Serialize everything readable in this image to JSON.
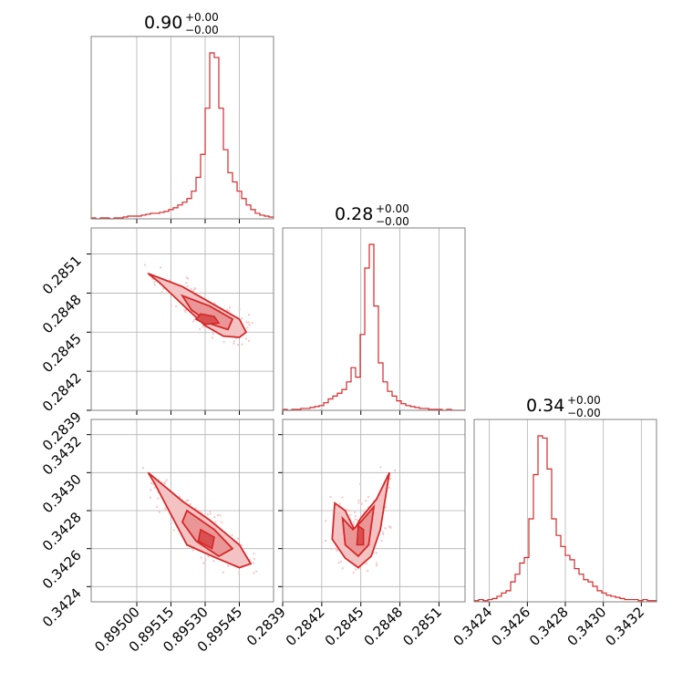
{
  "colors": {
    "main": "#d62728",
    "fill_outer": "#f3c3c3",
    "fill_mid": "#ea9696",
    "fill_inner": "#d95050",
    "scatter": "#f5c6c6",
    "grid": "#b0b0b0",
    "frame": "#808080"
  },
  "titles": [
    {
      "value": "0.90",
      "upper": "+0.00",
      "lower": "−0.00"
    },
    {
      "value": "0.28",
      "upper": "+0.00",
      "lower": "−0.00"
    },
    {
      "value": "0.34",
      "upper": "+0.00",
      "lower": "−0.00"
    }
  ],
  "axes": {
    "p0": {
      "range": [
        0.8948,
        0.8956
      ],
      "ticks": [
        0.895,
        0.89515,
        0.8953,
        0.89545
      ],
      "tick_labels": [
        "0.89500",
        "0.89515",
        "0.89530",
        "0.89545"
      ]
    },
    "p1": {
      "range": [
        0.2839,
        0.2853
      ],
      "ticks": [
        0.2839,
        0.2842,
        0.2845,
        0.2848,
        0.2851
      ],
      "tick_labels": [
        "0.2839",
        "0.2842",
        "0.2845",
        "0.2848",
        "0.2851"
      ]
    },
    "p2": {
      "range": [
        0.34232,
        0.34328
      ],
      "ticks": [
        0.3424,
        0.3426,
        0.3428,
        0.343,
        0.3432
      ],
      "tick_labels": [
        "0.3424",
        "0.3426",
        "0.3428",
        "0.3430",
        "0.3432"
      ]
    }
  },
  "chart_data": {
    "type": "corner",
    "params": [
      "p0",
      "p1",
      "p2"
    ],
    "grid": true,
    "histograms": [
      {
        "param": "p0",
        "range": [
          0.8948,
          0.8956
        ],
        "counts": [
          1,
          0,
          1,
          1,
          0,
          1,
          1,
          2,
          3,
          3,
          3,
          4,
          5,
          6,
          6,
          7,
          8,
          10,
          12,
          15,
          18,
          22,
          30,
          45,
          70,
          120,
          180,
          175,
          120,
          75,
          50,
          40,
          30,
          22,
          15,
          10,
          6,
          4,
          3,
          2
        ]
      },
      {
        "param": "p1",
        "range": [
          0.2839,
          0.2853
        ],
        "counts": [
          1,
          0,
          1,
          1,
          2,
          2,
          3,
          4,
          5,
          8,
          12,
          15,
          18,
          22,
          30,
          45,
          35,
          80,
          150,
          175,
          110,
          50,
          30,
          20,
          15,
          10,
          7,
          5,
          4,
          3,
          2,
          2,
          1,
          1,
          1,
          0,
          1,
          0,
          0,
          0
        ]
      },
      {
        "param": "p2",
        "range": [
          0.34232,
          0.34328
        ],
        "counts": [
          1,
          2,
          1,
          2,
          3,
          5,
          8,
          10,
          18,
          25,
          35,
          40,
          75,
          115,
          150,
          148,
          120,
          75,
          60,
          50,
          42,
          38,
          30,
          25,
          20,
          18,
          14,
          10,
          8,
          6,
          5,
          4,
          3,
          2,
          2,
          2,
          1,
          2,
          1,
          1
        ]
      }
    ],
    "pairs": [
      {
        "x": "p0",
        "y": "p1",
        "contours": {
          "outer": [
            [
              0.89505,
              0.28495
            ],
            [
              0.8952,
              0.28485
            ],
            [
              0.89535,
              0.2847
            ],
            [
              0.89545,
              0.2846
            ],
            [
              0.89548,
              0.2845
            ],
            [
              0.89545,
              0.28446
            ],
            [
              0.89538,
              0.28447
            ],
            [
              0.8953,
              0.28455
            ],
            [
              0.89522,
              0.28468
            ],
            [
              0.8951,
              0.28488
            ]
          ],
          "mid": [
            [
              0.8952,
              0.28478
            ],
            [
              0.89532,
              0.2847
            ],
            [
              0.89542,
              0.2846
            ],
            [
              0.8954,
              0.28452
            ],
            [
              0.89533,
              0.28456
            ],
            [
              0.89524,
              0.28467
            ]
          ],
          "inner": [
            [
              0.89528,
              0.28464
            ],
            [
              0.89534,
              0.28462
            ],
            [
              0.89536,
              0.28457
            ],
            [
              0.8953,
              0.28456
            ],
            [
              0.89526,
              0.2846
            ]
          ]
        }
      },
      {
        "x": "p0",
        "y": "p2",
        "contours": {
          "outer": [
            [
              0.89505,
              0.343
            ],
            [
              0.8952,
              0.34285
            ],
            [
              0.89532,
              0.34275
            ],
            [
              0.89545,
              0.34262
            ],
            [
              0.8955,
              0.34252
            ],
            [
              0.89545,
              0.3425
            ],
            [
              0.89535,
              0.34255
            ],
            [
              0.89522,
              0.34262
            ],
            [
              0.89515,
              0.34278
            ],
            [
              0.89508,
              0.34294
            ]
          ],
          "mid": [
            [
              0.89522,
              0.3428
            ],
            [
              0.89534,
              0.3427
            ],
            [
              0.89542,
              0.3426
            ],
            [
              0.89536,
              0.34256
            ],
            [
              0.89526,
              0.34264
            ],
            [
              0.8952,
              0.34274
            ]
          ],
          "inner": [
            [
              0.89528,
              0.3427
            ],
            [
              0.89534,
              0.34266
            ],
            [
              0.89533,
              0.3426
            ],
            [
              0.89527,
              0.34264
            ]
          ]
        }
      },
      {
        "x": "p1",
        "y": "p2",
        "contours": {
          "outer": [
            [
              0.2843,
              0.34284
            ],
            [
              0.28438,
              0.3428
            ],
            [
              0.28445,
              0.3427
            ],
            [
              0.2845,
              0.34276
            ],
            [
              0.28462,
              0.34286
            ],
            [
              0.28472,
              0.343
            ],
            [
              0.28465,
              0.3427
            ],
            [
              0.28458,
              0.34256
            ],
            [
              0.28448,
              0.3425
            ],
            [
              0.28438,
              0.34255
            ],
            [
              0.28428,
              0.34265
            ]
          ],
          "mid": [
            [
              0.28436,
              0.34276
            ],
            [
              0.28444,
              0.3427
            ],
            [
              0.2845,
              0.34274
            ],
            [
              0.2846,
              0.34282
            ],
            [
              0.28456,
              0.34262
            ],
            [
              0.28448,
              0.34256
            ],
            [
              0.28438,
              0.34262
            ]
          ],
          "inner": [
            [
              0.28448,
              0.34272
            ],
            [
              0.28452,
              0.3427
            ],
            [
              0.28452,
              0.34262
            ],
            [
              0.28447,
              0.34262
            ]
          ]
        }
      }
    ]
  }
}
